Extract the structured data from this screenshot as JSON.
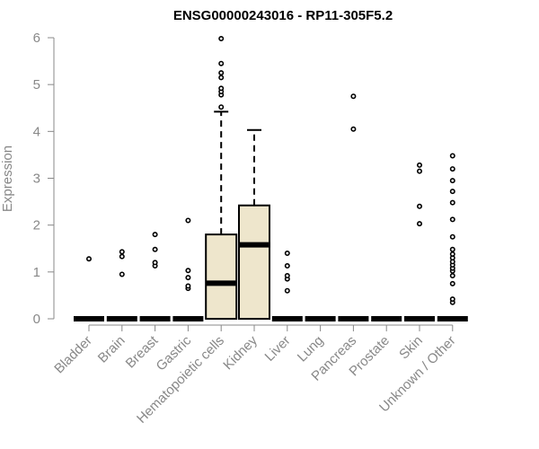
{
  "colors": {
    "box_fill": "#EEE6CC",
    "box_stroke": "#000000",
    "axis": "#888888",
    "title": "#000000"
  },
  "chart_data": {
    "type": "boxplot",
    "title": "ENSG00000243016 - RP11-305F5.2",
    "xlabel": "",
    "ylabel": "Expression",
    "ylim": [
      0,
      6
    ],
    "yticks": [
      0,
      1,
      2,
      3,
      4,
      5,
      6
    ],
    "grid": false,
    "legend": "none",
    "categories": [
      "Bladder",
      "Brain",
      "Breast",
      "Gastric",
      "Hematopoietic cells",
      "Kidney",
      "Liver",
      "Lung",
      "Pancreas",
      "Prostate",
      "Skin",
      "Unknown / Other"
    ],
    "boxes": [
      {
        "category": "Bladder",
        "q1": 0,
        "median": 0,
        "q3": 0,
        "whisker_low": 0,
        "whisker_high": 0,
        "outliers": [
          1.28
        ]
      },
      {
        "category": "Brain",
        "q1": 0,
        "median": 0,
        "q3": 0,
        "whisker_low": 0,
        "whisker_high": 0,
        "outliers": [
          0.95,
          1.33,
          1.43
        ]
      },
      {
        "category": "Breast",
        "q1": 0,
        "median": 0,
        "q3": 0,
        "whisker_low": 0,
        "whisker_high": 0,
        "outliers": [
          1.13,
          1.2,
          1.48,
          1.8
        ]
      },
      {
        "category": "Gastric",
        "q1": 0,
        "median": 0,
        "q3": 0,
        "whisker_low": 0,
        "whisker_high": 0,
        "outliers": [
          0.65,
          0.7,
          0.88,
          1.03,
          2.1
        ]
      },
      {
        "category": "Hematopoietic cells",
        "q1": 0,
        "median": 0.76,
        "q3": 1.8,
        "whisker_low": 0,
        "whisker_high": 4.42,
        "outliers": [
          4.52,
          4.78,
          4.85,
          4.92,
          5.15,
          5.25,
          5.45,
          5.98
        ]
      },
      {
        "category": "Kidney",
        "q1": 0,
        "median": 1.58,
        "q3": 2.42,
        "whisker_low": 0,
        "whisker_high": 4.03,
        "outliers": []
      },
      {
        "category": "Liver",
        "q1": 0,
        "median": 0,
        "q3": 0,
        "whisker_low": 0,
        "whisker_high": 0,
        "outliers": [
          0.6,
          0.85,
          0.92,
          1.13,
          1.4
        ]
      },
      {
        "category": "Lung",
        "q1": 0,
        "median": 0,
        "q3": 0,
        "whisker_low": 0,
        "whisker_high": 0,
        "outliers": []
      },
      {
        "category": "Pancreas",
        "q1": 0,
        "median": 0,
        "q3": 0,
        "whisker_low": 0,
        "whisker_high": 0,
        "outliers": [
          4.05,
          4.75
        ]
      },
      {
        "category": "Prostate",
        "q1": 0,
        "median": 0,
        "q3": 0,
        "whisker_low": 0,
        "whisker_high": 0,
        "outliers": []
      },
      {
        "category": "Skin",
        "q1": 0,
        "median": 0,
        "q3": 0,
        "whisker_low": 0,
        "whisker_high": 0,
        "outliers": [
          2.03,
          2.4,
          3.15,
          3.28
        ]
      },
      {
        "category": "Unknown / Other",
        "q1": 0,
        "median": 0,
        "q3": 0,
        "whisker_low": 0,
        "whisker_high": 0,
        "outliers": [
          0.35,
          0.42,
          0.75,
          0.92,
          1.02,
          1.08,
          1.15,
          1.22,
          1.3,
          1.38,
          1.48,
          1.75,
          2.12,
          2.48,
          2.72,
          2.95,
          3.2,
          3.48
        ]
      }
    ]
  }
}
